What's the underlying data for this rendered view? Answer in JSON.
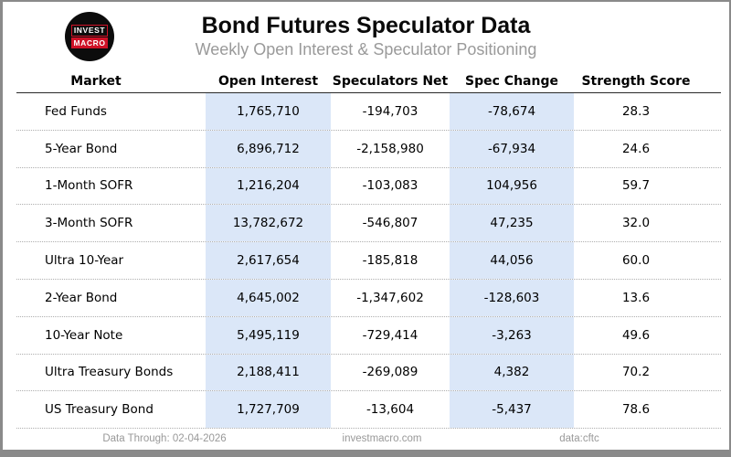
{
  "logo": {
    "line1": "INVEST",
    "line2": "MACRO"
  },
  "header": {
    "title": "Bond Futures Speculator Data",
    "subtitle": "Weekly Open Interest & Speculator Positioning"
  },
  "table": {
    "columns": [
      "Market",
      "Open Interest",
      "Speculators Net",
      "Spec Change",
      "Strength Score"
    ],
    "rows": [
      {
        "market": "Fed Funds",
        "open_interest": "1,765,710",
        "speculators_net": "-194,703",
        "spec_change": "-78,674",
        "strength_score": "28.3"
      },
      {
        "market": "5-Year Bond",
        "open_interest": "6,896,712",
        "speculators_net": "-2,158,980",
        "spec_change": "-67,934",
        "strength_score": "24.6"
      },
      {
        "market": "1-Month SOFR",
        "open_interest": "1,216,204",
        "speculators_net": "-103,083",
        "spec_change": "104,956",
        "strength_score": "59.7"
      },
      {
        "market": "3-Month SOFR",
        "open_interest": "13,782,672",
        "speculators_net": "-546,807",
        "spec_change": "47,235",
        "strength_score": "32.0"
      },
      {
        "market": "Ultra 10-Year",
        "open_interest": "2,617,654",
        "speculators_net": "-185,818",
        "spec_change": "44,056",
        "strength_score": "60.0"
      },
      {
        "market": "2-Year Bond",
        "open_interest": "4,645,002",
        "speculators_net": "-1,347,602",
        "spec_change": "-128,603",
        "strength_score": "13.6"
      },
      {
        "market": "10-Year Note",
        "open_interest": "5,495,119",
        "speculators_net": "-729,414",
        "spec_change": "-3,263",
        "strength_score": "49.6"
      },
      {
        "market": "Ultra Treasury Bonds",
        "open_interest": "2,188,411",
        "speculators_net": "-269,089",
        "spec_change": "4,382",
        "strength_score": "70.2"
      },
      {
        "market": "US Treasury Bond",
        "open_interest": "1,727,709",
        "speculators_net": "-13,604",
        "spec_change": "-5,437",
        "strength_score": "78.6"
      }
    ]
  },
  "footer": {
    "data_through": "Data Through: 02-04-2026",
    "website": "investmacro.com",
    "source": "data:cftc"
  },
  "colors": {
    "highlight_blue": "#dbe7f8",
    "brand_red": "#ce1126",
    "subtitle_gray": "#9a9a9a",
    "footer_gray": "#999999",
    "border_gray": "#8a8a8a"
  },
  "chart_data": {
    "type": "table",
    "title": "Bond Futures Speculator Data",
    "subtitle": "Weekly Open Interest & Speculator Positioning",
    "columns": [
      "Market",
      "Open Interest",
      "Speculators Net",
      "Spec Change",
      "Strength Score"
    ],
    "rows": [
      [
        "Fed Funds",
        1765710,
        -194703,
        -78674,
        28.3
      ],
      [
        "5-Year Bond",
        6896712,
        -2158980,
        -67934,
        24.6
      ],
      [
        "1-Month SOFR",
        1216204,
        -103083,
        104956,
        59.7
      ],
      [
        "3-Month SOFR",
        13782672,
        -546807,
        47235,
        32.0
      ],
      [
        "Ultra 10-Year",
        2617654,
        -185818,
        44056,
        60.0
      ],
      [
        "2-Year Bond",
        4645002,
        -1347602,
        -128603,
        13.6
      ],
      [
        "10-Year Note",
        5495119,
        -729414,
        -3263,
        49.6
      ],
      [
        "Ultra Treasury Bonds",
        2188411,
        -269089,
        4382,
        70.2
      ],
      [
        "US Treasury Bond",
        1727709,
        -13604,
        -5437,
        78.6
      ]
    ],
    "highlighted_columns": [
      "Open Interest",
      "Spec Change"
    ],
    "data_through": "02-04-2026",
    "source": "cftc"
  }
}
